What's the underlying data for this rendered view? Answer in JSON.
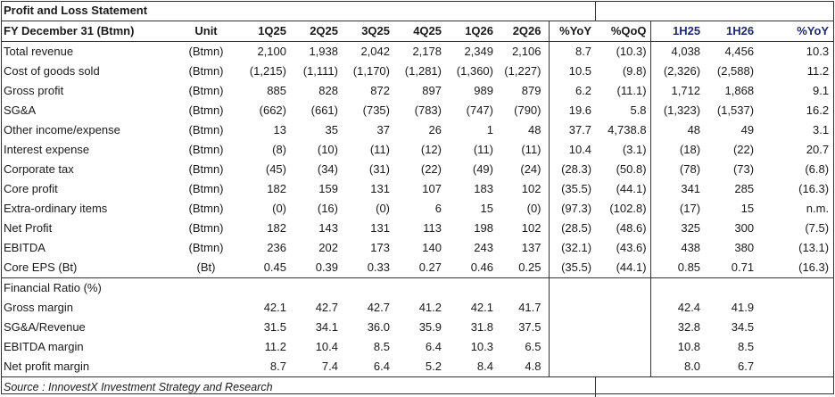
{
  "title": "Profit and Loss Statement",
  "header": {
    "row_label": "FY December 31 (Btmn)",
    "unit": "Unit",
    "quarters": [
      "1Q25",
      "2Q25",
      "3Q25",
      "4Q25",
      "1Q26",
      "2Q26"
    ],
    "changes": [
      "%YoY",
      "%QoQ"
    ],
    "halves": [
      "1H25",
      "1H26",
      "%YoY"
    ]
  },
  "rows": [
    {
      "label": "Total revenue",
      "unit": "(Btmn)",
      "q": [
        "2,100",
        "1,938",
        "2,042",
        "2,178",
        "2,349",
        "2,106"
      ],
      "c": [
        "8.7",
        "(10.3)"
      ],
      "h": [
        "4,038",
        "4,456",
        "10.3"
      ]
    },
    {
      "label": "Cost of goods sold",
      "unit": "(Btmn)",
      "q": [
        "(1,215)",
        "(1,111)",
        "(1,170)",
        "(1,281)",
        "(1,360)",
        "(1,227)"
      ],
      "c": [
        "10.5",
        "(9.8)"
      ],
      "h": [
        "(2,326)",
        "(2,588)",
        "11.2"
      ]
    },
    {
      "label": "Gross profit",
      "unit": "(Btmn)",
      "q": [
        "885",
        "828",
        "872",
        "897",
        "989",
        "879"
      ],
      "c": [
        "6.2",
        "(11.1)"
      ],
      "h": [
        "1,712",
        "1,868",
        "9.1"
      ]
    },
    {
      "label": "SG&A",
      "unit": "(Btmn)",
      "q": [
        "(662)",
        "(661)",
        "(735)",
        "(783)",
        "(747)",
        "(790)"
      ],
      "c": [
        "19.6",
        "5.8"
      ],
      "h": [
        "(1,323)",
        "(1,537)",
        "16.2"
      ]
    },
    {
      "label": "Other income/expense",
      "unit": "(Btmn)",
      "q": [
        "13",
        "35",
        "37",
        "26",
        "1",
        "48"
      ],
      "c": [
        "37.7",
        "4,738.8"
      ],
      "h": [
        "48",
        "49",
        "3.1"
      ]
    },
    {
      "label": "Interest expense",
      "unit": "(Btmn)",
      "q": [
        "(8)",
        "(10)",
        "(11)",
        "(12)",
        "(11)",
        "(11)"
      ],
      "c": [
        "10.4",
        "(3.1)"
      ],
      "h": [
        "(18)",
        "(22)",
        "20.7"
      ]
    },
    {
      "label": "Corporate tax",
      "unit": "(Btmn)",
      "q": [
        "(45)",
        "(34)",
        "(31)",
        "(22)",
        "(49)",
        "(24)"
      ],
      "c": [
        "(28.3)",
        "(50.8)"
      ],
      "h": [
        "(78)",
        "(73)",
        "(6.8)"
      ]
    },
    {
      "label": "Core profit",
      "unit": "(Btmn)",
      "q": [
        "182",
        "159",
        "131",
        "107",
        "183",
        "102"
      ],
      "c": [
        "(35.5)",
        "(44.1)"
      ],
      "h": [
        "341",
        "285",
        "(16.3)"
      ]
    },
    {
      "label": "Extra-ordinary items",
      "unit": "(Btmn)",
      "q": [
        "(0)",
        "(16)",
        "(0)",
        "6",
        "15",
        "(0)"
      ],
      "c": [
        "(97.3)",
        "(102.8)"
      ],
      "h": [
        "(17)",
        "15",
        "n.m."
      ]
    },
    {
      "label": "Net Profit",
      "unit": "(Btmn)",
      "q": [
        "182",
        "143",
        "131",
        "113",
        "198",
        "102"
      ],
      "c": [
        "(28.5)",
        "(48.6)"
      ],
      "h": [
        "325",
        "300",
        "(7.5)"
      ]
    },
    {
      "label": "EBITDA",
      "unit": "(Btmn)",
      "q": [
        "236",
        "202",
        "173",
        "140",
        "243",
        "137"
      ],
      "c": [
        "(32.1)",
        "(43.6)"
      ],
      "h": [
        "438",
        "380",
        "(13.1)"
      ]
    },
    {
      "label": "Core EPS (Bt)",
      "unit": "(Bt)",
      "q": [
        "0.45",
        "0.39",
        "0.33",
        "0.27",
        "0.46",
        "0.25"
      ],
      "c": [
        "(35.5)",
        "(44.1)"
      ],
      "h": [
        "0.85",
        "0.71",
        "(16.3)"
      ]
    }
  ],
  "ratio_section": "Financial Ratio (%)",
  "ratios": [
    {
      "label": "Gross margin",
      "q": [
        "42.1",
        "42.7",
        "42.7",
        "41.2",
        "42.1",
        "41.7"
      ],
      "h": [
        "42.4",
        "41.9"
      ]
    },
    {
      "label": "SG&A/Revenue",
      "q": [
        "31.5",
        "34.1",
        "36.0",
        "35.9",
        "31.8",
        "37.5"
      ],
      "h": [
        "32.8",
        "34.5"
      ]
    },
    {
      "label": "EBITDA margin",
      "q": [
        "11.2",
        "10.4",
        "8.5",
        "6.4",
        "10.3",
        "6.5"
      ],
      "h": [
        "10.8",
        "8.5"
      ]
    },
    {
      "label": "Net profit margin",
      "q": [
        "8.7",
        "7.4",
        "6.4",
        "5.2",
        "8.4",
        "4.8"
      ],
      "h": [
        "8.0",
        "6.7"
      ]
    }
  ],
  "source": "Source : InnovestX Investment Strategy and Research",
  "colors": {
    "half_header": "#1f2a6b",
    "border": "#333333"
  }
}
